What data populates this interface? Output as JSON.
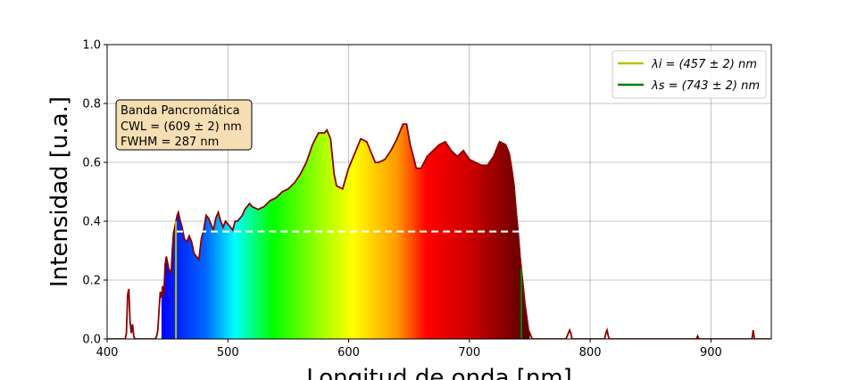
{
  "chart_data": {
    "type": "area",
    "xlabel": "Longitud de onda [nm]",
    "ylabel": "Intensidad [u.a.]",
    "xlim": [
      400,
      950
    ],
    "ylim": [
      0,
      1.0
    ],
    "xticks": [
      "400",
      "500",
      "600",
      "700",
      "800",
      "900"
    ],
    "yticks": [
      "0.0",
      "0.2",
      "0.4",
      "0.6",
      "0.8",
      "1.0"
    ],
    "grid": true,
    "legend_position": "top-right",
    "legend": [
      {
        "label": "λi = (457 ± 2) nm",
        "color": "#bfbf00"
      },
      {
        "label": "λs = (743 ± 2) nm",
        "color": "#008000"
      }
    ],
    "info_box": {
      "line1": "Banda Pancromática",
      "line2": "CWL = (609 ± 2) nm",
      "line3": "FWHM = 287 nm",
      "background": "#f5deb3"
    },
    "lambda_i": 457,
    "lambda_s": 743,
    "half_max": 0.365,
    "series": [
      {
        "x": [
          400,
          415,
          416,
          417,
          418,
          419,
          420,
          421,
          422,
          423,
          430,
          440,
          441,
          442,
          443,
          444,
          445,
          446,
          447,
          448,
          449,
          450,
          451,
          452,
          453,
          454,
          455,
          456,
          457,
          458,
          459,
          460,
          462,
          464,
          466,
          468,
          470,
          472,
          474,
          476,
          478,
          480,
          482,
          484,
          486,
          488,
          490,
          492,
          494,
          496,
          498,
          500,
          502,
          504,
          506,
          508,
          510,
          512,
          514,
          516,
          518,
          520,
          525,
          530,
          535,
          540,
          545,
          550,
          555,
          560,
          565,
          570,
          575,
          580,
          582,
          585,
          588,
          590,
          595,
          600,
          605,
          610,
          615,
          618,
          620,
          622,
          625,
          630,
          635,
          640,
          645,
          648,
          651,
          653,
          656,
          660,
          665,
          670,
          675,
          680,
          685,
          690,
          695,
          700,
          705,
          710,
          715,
          720,
          725,
          730,
          733,
          735,
          737,
          738,
          739,
          740,
          741,
          742,
          743,
          744,
          745,
          746,
          747,
          748,
          749,
          750,
          751,
          752,
          760,
          780,
          782,
          783,
          784,
          785,
          786,
          800,
          812,
          813,
          814,
          815,
          816,
          830,
          880,
          888,
          889,
          890,
          934,
          935,
          936,
          950
        ],
        "y": [
          0,
          0,
          0.02,
          0.15,
          0.17,
          0.06,
          0.02,
          0.05,
          0.01,
          0,
          0,
          0,
          0.01,
          0.03,
          0.1,
          0.16,
          0.14,
          0.18,
          0.15,
          0.25,
          0.28,
          0.26,
          0.24,
          0.23,
          0.22,
          0.3,
          0.36,
          0.38,
          0.4,
          0.42,
          0.43,
          0.41,
          0.38,
          0.34,
          0.33,
          0.35,
          0.33,
          0.29,
          0.28,
          0.27,
          0.34,
          0.37,
          0.42,
          0.41,
          0.39,
          0.37,
          0.41,
          0.43,
          0.4,
          0.38,
          0.4,
          0.39,
          0.38,
          0.37,
          0.4,
          0.4,
          0.41,
          0.42,
          0.44,
          0.45,
          0.46,
          0.45,
          0.44,
          0.45,
          0.47,
          0.48,
          0.5,
          0.51,
          0.53,
          0.56,
          0.6,
          0.66,
          0.7,
          0.7,
          0.71,
          0.68,
          0.56,
          0.52,
          0.51,
          0.58,
          0.63,
          0.68,
          0.67,
          0.64,
          0.62,
          0.6,
          0.6,
          0.61,
          0.64,
          0.68,
          0.73,
          0.73,
          0.66,
          0.63,
          0.58,
          0.58,
          0.62,
          0.64,
          0.66,
          0.67,
          0.64,
          0.62,
          0.64,
          0.61,
          0.6,
          0.59,
          0.59,
          0.62,
          0.67,
          0.66,
          0.63,
          0.58,
          0.52,
          0.47,
          0.42,
          0.38,
          0.33,
          0.28,
          0.24,
          0.2,
          0.16,
          0.12,
          0.09,
          0.06,
          0.03,
          0.02,
          0.01,
          0,
          0,
          0,
          0.02,
          0.03,
          0.02,
          0,
          0,
          0,
          0,
          0.02,
          0.03,
          0.01,
          0,
          0,
          0,
          0,
          0.01,
          0,
          0,
          0.03,
          0,
          0
        ]
      }
    ]
  }
}
